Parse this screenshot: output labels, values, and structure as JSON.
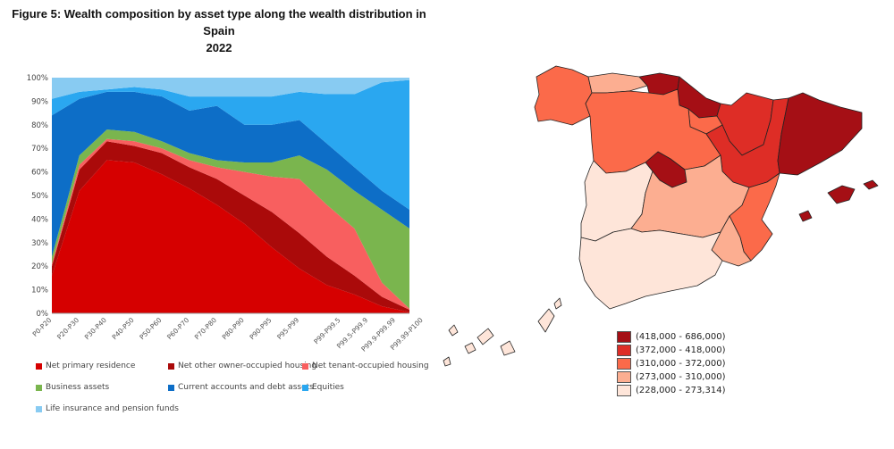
{
  "title_line1": "Figure 5: Wealth composition by asset type along the wealth distribution in Spain",
  "title_line2": "2022",
  "chart_data": [
    {
      "type": "area",
      "stacked": true,
      "title": "Wealth composition by asset type along the wealth distribution in Spain 2022",
      "y_ticks": [
        "0%",
        "10%",
        "20%",
        "30%",
        "40%",
        "50%",
        "60%",
        "70%",
        "80%",
        "90%",
        "100%"
      ],
      "ylim": [
        0,
        100
      ],
      "categories": [
        "P0-P20",
        "P20-P30",
        "P30-P40",
        "P40-P50",
        "P50-P60",
        "P60-P70",
        "P70-P80",
        "P80-P90",
        "P90-P95",
        "P95-P99",
        "P99-P99.5",
        "P99.5-P99.9",
        "P99.9-P99.99",
        "P99.99-P100"
      ],
      "x_ticks": [
        {
          "label": "P0-P20",
          "pos": 0
        },
        {
          "label": "P20-P30",
          "pos": 1
        },
        {
          "label": "P30-P40",
          "pos": 2
        },
        {
          "label": "P40-P50",
          "pos": 3
        },
        {
          "label": "P50-P60",
          "pos": 4
        },
        {
          "label": "P60-P70",
          "pos": 5
        },
        {
          "label": "P70-P80",
          "pos": 6
        },
        {
          "label": "P80-P90",
          "pos": 7
        },
        {
          "label": "P90-P95",
          "pos": 8
        },
        {
          "label": "P95-P99",
          "pos": 9
        },
        {
          "label": "P99-P99.5",
          "pos": 10.5
        },
        {
          "label": "P99.5-P99.9",
          "pos": 11.5
        },
        {
          "label": "P99.9-P99.99",
          "pos": 12.5
        },
        {
          "label": "P99.99-P100",
          "pos": 13.5
        }
      ],
      "series": [
        {
          "name": "Net primary residence",
          "color": "#d60000",
          "values": [
            16,
            52,
            65,
            64,
            59,
            53,
            46,
            38,
            28,
            19,
            12,
            8,
            3,
            0.5
          ]
        },
        {
          "name": "Net other owner-occupied housing",
          "color": "#aa0a0a",
          "values": [
            4,
            9,
            8,
            7,
            9,
            9,
            11,
            12,
            15,
            15,
            12,
            8,
            4,
            1
          ]
        },
        {
          "name": "Net tenant-occupied housing",
          "color": "#f85f5f",
          "values": [
            1,
            2,
            1,
            2,
            2,
            3,
            5,
            10,
            15,
            23,
            22,
            20,
            6,
            0.5
          ]
        },
        {
          "name": "Business assets",
          "color": "#7ab54e",
          "values": [
            3,
            4,
            4,
            4,
            3,
            3,
            3,
            4,
            6,
            10,
            15,
            16,
            31,
            34
          ]
        },
        {
          "name": "Current accounts and debt assets",
          "color": "#0d6ec7",
          "values": [
            60,
            24,
            16,
            17,
            19,
            18,
            23,
            16,
            16,
            15,
            11,
            10,
            8,
            8
          ]
        },
        {
          "name": "Equities",
          "color": "#2aa7f0",
          "values": [
            7,
            3,
            1,
            2,
            3,
            6,
            4,
            12,
            12,
            12,
            21,
            31,
            46,
            55
          ]
        },
        {
          "name": "Life insurance and pension funds",
          "color": "#88cbf2",
          "values": [
            9,
            6,
            5,
            4,
            5,
            8,
            8,
            8,
            8,
            6,
            7,
            7,
            2,
            1
          ]
        }
      ]
    },
    {
      "type": "choropleth",
      "title": "Spain",
      "legend": [
        {
          "label": "(418,000 - 686,000)",
          "color": "#a50f15"
        },
        {
          "label": "(372,000 - 418,000)",
          "color": "#de2d26"
        },
        {
          "label": "(310,000 - 372,000)",
          "color": "#fb6a4a"
        },
        {
          "label": "(273,000 - 310,000)",
          "color": "#fcae91"
        },
        {
          "label": "(228,000 - 273,314)",
          "color": "#fee5d9"
        }
      ]
    }
  ],
  "legend_items": [
    {
      "name": "Net primary residence",
      "color": "#d60000"
    },
    {
      "name": "Net other owner-occupied housing",
      "color": "#aa0a0a"
    },
    {
      "name": "Net tenant-occupied housing",
      "color": "#f85f5f"
    },
    {
      "name": "Business assets",
      "color": "#7ab54e"
    },
    {
      "name": "Current accounts and debt assets",
      "color": "#0d6ec7"
    },
    {
      "name": "Equities",
      "color": "#2aa7f0"
    },
    {
      "name": "Life insurance and pension funds",
      "color": "#88cbf2"
    }
  ]
}
